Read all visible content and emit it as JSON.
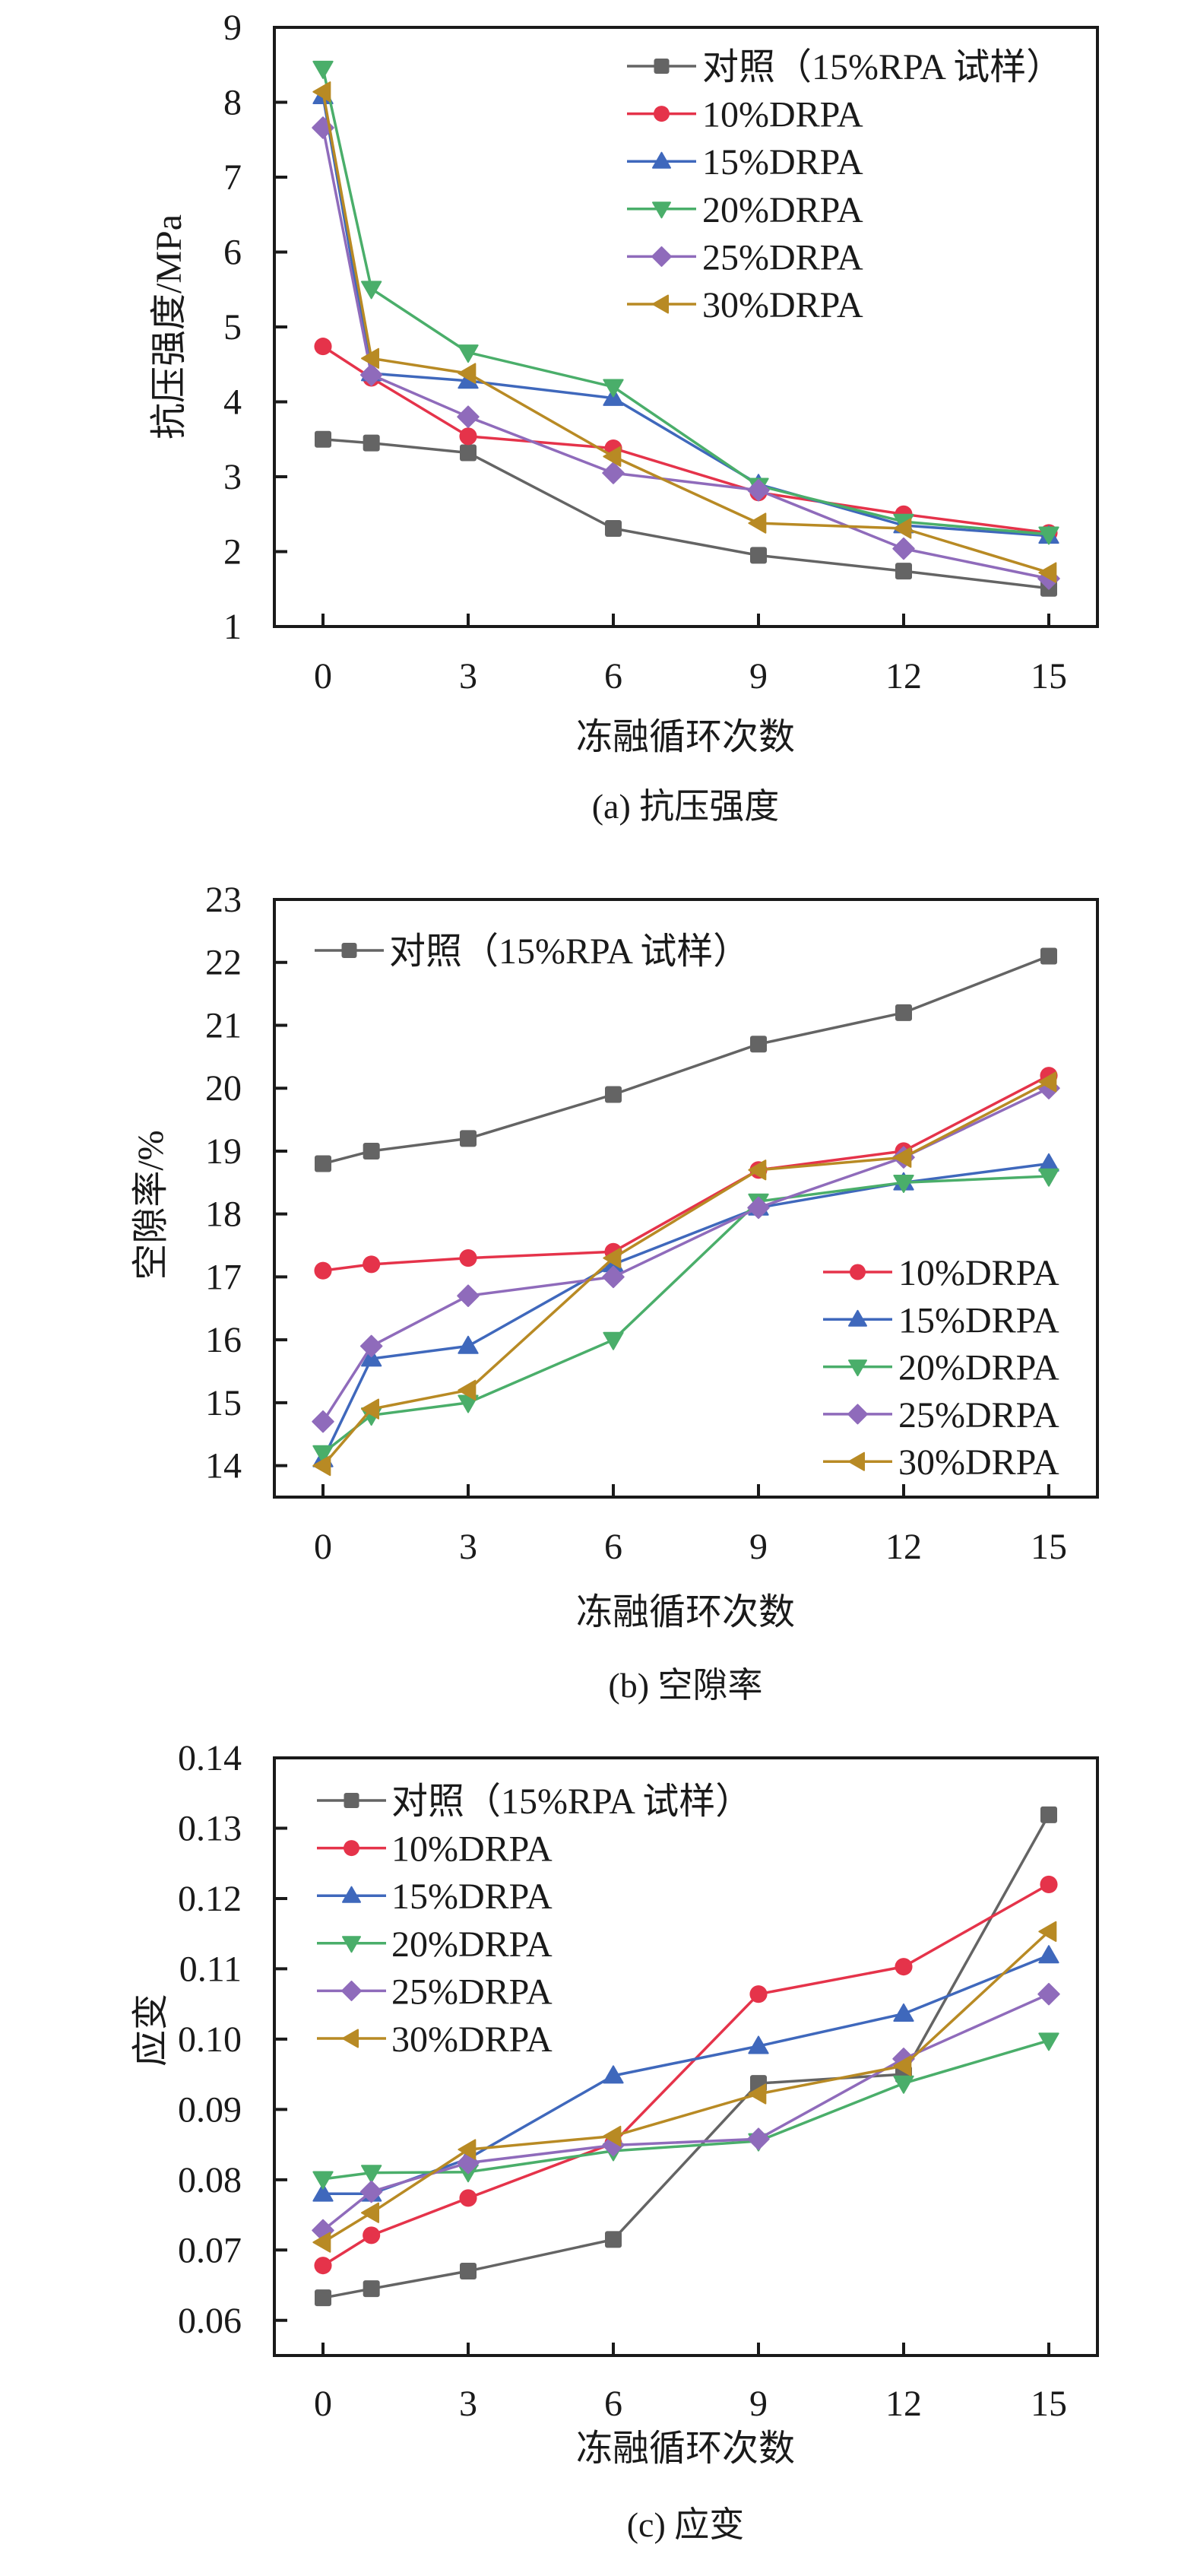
{
  "figure": {
    "series_meta": [
      {
        "key": "control",
        "name": "对照（15%RPA 试样）",
        "color": "#646464",
        "marker": "square"
      },
      {
        "key": "d10",
        "name": "10%DRPA",
        "color": "#E5334A",
        "marker": "circle"
      },
      {
        "key": "d15",
        "name": "15%DRPA",
        "color": "#3F68BC",
        "marker": "triangle-up"
      },
      {
        "key": "d20",
        "name": "20%DRPA",
        "color": "#4AAE6A",
        "marker": "triangle-down"
      },
      {
        "key": "d25",
        "name": "25%DRPA",
        "color": "#8F6BBB",
        "marker": "diamond"
      },
      {
        "key": "d30",
        "name": "30%DRPA",
        "color": "#B88A24",
        "marker": "triangle-left"
      }
    ]
  },
  "chart_data": [
    {
      "type": "line",
      "title": "(a) 抗压强度",
      "xlabel": "冻融循环次数",
      "ylabel": "抗压强度/MPa",
      "x": [
        0,
        1,
        3,
        6,
        9,
        12,
        15
      ],
      "xticks": [
        0,
        3,
        6,
        9,
        12,
        15
      ],
      "xlim": [
        -1,
        16
      ],
      "ylim": [
        1,
        9
      ],
      "yticks": [
        1,
        2,
        3,
        4,
        5,
        6,
        7,
        8,
        9
      ],
      "grid": false,
      "legend": {
        "placement": "top-right",
        "entries": [
          "control",
          "d10",
          "d15",
          "d20",
          "d25",
          "d30"
        ]
      },
      "series": [
        {
          "name": "对照（15%RPA 试样）",
          "values": [
            3.5,
            3.45,
            3.32,
            2.31,
            1.95,
            1.74,
            1.51
          ]
        },
        {
          "name": "10%DRPA",
          "values": [
            4.74,
            4.32,
            3.54,
            3.38,
            2.79,
            2.5,
            2.25
          ]
        },
        {
          "name": "15%DRPA",
          "values": [
            8.08,
            4.38,
            4.28,
            4.05,
            2.9,
            2.35,
            2.21
          ]
        },
        {
          "name": "20%DRPA",
          "values": [
            8.45,
            5.51,
            4.66,
            4.2,
            2.88,
            2.4,
            2.23
          ]
        },
        {
          "name": "25%DRPA",
          "values": [
            7.66,
            4.36,
            3.8,
            3.05,
            2.82,
            2.04,
            1.64
          ]
        },
        {
          "name": "30%DRPA",
          "values": [
            8.14,
            4.58,
            4.38,
            3.27,
            2.38,
            2.31,
            1.72
          ]
        }
      ]
    },
    {
      "type": "line",
      "title": "(b) 空隙率",
      "xlabel": "冻融循环次数",
      "ylabel": "空隙率/%",
      "x": [
        0,
        1,
        3,
        6,
        9,
        12,
        15
      ],
      "xticks": [
        0,
        3,
        6,
        9,
        12,
        15
      ],
      "xlim": [
        -1,
        16
      ],
      "ylim": [
        13.5,
        23
      ],
      "yticks": [
        14,
        15,
        16,
        17,
        18,
        19,
        20,
        21,
        22,
        23
      ],
      "grid": false,
      "legend": {
        "placement": "split: control top-left, others bottom-right",
        "entries": [
          "control",
          "d10",
          "d15",
          "d20",
          "d25",
          "d30"
        ]
      },
      "series": [
        {
          "name": "对照（15%RPA 试样）",
          "values": [
            18.8,
            19.0,
            19.2,
            19.9,
            20.7,
            21.2,
            22.1
          ]
        },
        {
          "name": "10%DRPA",
          "values": [
            17.1,
            17.2,
            17.3,
            17.4,
            18.7,
            19.0,
            20.2
          ]
        },
        {
          "name": "15%DRPA",
          "values": [
            14.1,
            15.7,
            15.9,
            17.2,
            18.1,
            18.5,
            18.8
          ]
        },
        {
          "name": "20%DRPA",
          "values": [
            14.2,
            14.8,
            15.0,
            16.0,
            18.2,
            18.5,
            18.6
          ]
        },
        {
          "name": "25%DRPA",
          "values": [
            14.7,
            15.9,
            16.7,
            17.0,
            18.1,
            18.9,
            20.0
          ]
        },
        {
          "name": "30%DRPA",
          "values": [
            14.0,
            14.9,
            15.2,
            17.3,
            18.7,
            18.9,
            20.1
          ]
        }
      ]
    },
    {
      "type": "line",
      "title": "(c) 应变",
      "xlabel": "冻融循环次数",
      "ylabel": "应变",
      "x": [
        0,
        1,
        3,
        6,
        9,
        12,
        15
      ],
      "xticks": [
        0,
        3,
        6,
        9,
        12,
        15
      ],
      "xlim": [
        -1,
        16
      ],
      "ylim": [
        0.055,
        0.14
      ],
      "yticks": [
        0.06,
        0.07,
        0.08,
        0.09,
        0.1,
        0.11,
        0.12,
        0.13,
        0.14
      ],
      "ytick_labels": [
        "0.06",
        "0.07",
        "0.08",
        "0.09",
        "0.10",
        "0.11",
        "0.12",
        "0.13",
        "0.14"
      ],
      "grid": false,
      "legend": {
        "placement": "top-left",
        "entries": [
          "control",
          "d10",
          "d15",
          "d20",
          "d25",
          "d30"
        ]
      },
      "series": [
        {
          "name": "对照（15%RPA 试样）",
          "values": [
            0.0632,
            0.0645,
            0.067,
            0.0715,
            0.0937,
            0.095,
            0.1319
          ]
        },
        {
          "name": "10%DRPA",
          "values": [
            0.0678,
            0.0721,
            0.0774,
            0.0852,
            0.1064,
            0.1103,
            0.122
          ]
        },
        {
          "name": "15%DRPA",
          "values": [
            0.078,
            0.078,
            0.083,
            0.0948,
            0.099,
            0.1036,
            0.1119
          ]
        },
        {
          "name": "20%DRPA",
          "values": [
            0.0801,
            0.081,
            0.0811,
            0.0841,
            0.0855,
            0.0937,
            0.0998
          ]
        },
        {
          "name": "25%DRPA",
          "values": [
            0.0728,
            0.0783,
            0.0824,
            0.0849,
            0.0858,
            0.0972,
            0.1064
          ]
        },
        {
          "name": "30%DRPA",
          "values": [
            0.0711,
            0.0753,
            0.0843,
            0.0862,
            0.0922,
            0.0962,
            0.1153
          ]
        }
      ]
    }
  ]
}
